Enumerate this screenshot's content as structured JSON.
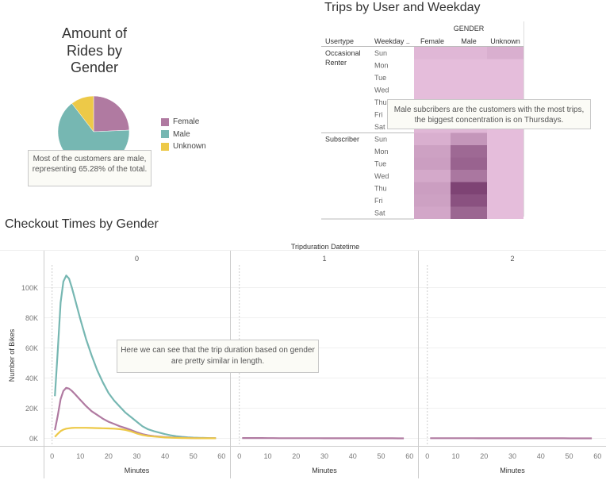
{
  "pie": {
    "title_line1": "Amount of",
    "title_line2": "Rides by",
    "title_line3": "Gender",
    "annotation": "Most of the customers are male, representing 65.28% of the total.",
    "legend": [
      {
        "label": "Female",
        "color": "#b07aa1"
      },
      {
        "label": "Male",
        "color": "#76b7b2"
      },
      {
        "label": "Unknown",
        "color": "#edc948"
      }
    ]
  },
  "heatmap": {
    "title": "Trips by User and Weekday",
    "col_group_header": "GENDER",
    "row_header_1": "Usertype",
    "row_header_2": "Weekday ..",
    "columns": [
      "Female",
      "Male",
      "Unknown"
    ],
    "groups": [
      {
        "label_line1": "Occasional",
        "label_line2": "Renter"
      },
      {
        "label_line1": "Subscriber",
        "label_line2": ""
      }
    ],
    "weekdays": [
      "Sun",
      "Mon",
      "Tue",
      "Wed",
      "Thu",
      "Fri",
      "Sat"
    ],
    "annotation": "Male subcribers are the customers with the most trips, the biggest concentration is on Thursdays."
  },
  "line": {
    "title": "Checkout Times by Gender",
    "panel_header": "Tripduration Datetime",
    "panels": [
      "0",
      "1",
      "2"
    ],
    "xlabel": "Minutes",
    "ylabel": "Number of Bikes",
    "annotation": "Here we can see that the trip duration based on gender are pretty similar in length."
  },
  "chart_data": [
    {
      "type": "pie",
      "title": "Amount of Rides by Gender",
      "categories": [
        "Female",
        "Male",
        "Unknown"
      ],
      "values": [
        24.3,
        65.28,
        10.42
      ],
      "colors": [
        "#b07aa1",
        "#76b7b2",
        "#edc948"
      ],
      "legend_position": "right"
    },
    {
      "type": "heatmap",
      "title": "Trips by User and Weekday",
      "columns": [
        "Female",
        "Male",
        "Unknown"
      ],
      "rows": [
        {
          "usertype": "Occasional Renter",
          "weekday": "Sun",
          "values": [
            0.12,
            0.12,
            0.18
          ]
        },
        {
          "usertype": "Occasional Renter",
          "weekday": "Mon",
          "values": [
            0.08,
            0.08,
            0.08
          ]
        },
        {
          "usertype": "Occasional Renter",
          "weekday": "Tue",
          "values": [
            0.08,
            0.08,
            0.08
          ]
        },
        {
          "usertype": "Occasional Renter",
          "weekday": "Wed",
          "values": [
            0.08,
            0.08,
            0.08
          ]
        },
        {
          "usertype": "Occasional Renter",
          "weekday": "Thu",
          "values": [
            0.08,
            0.08,
            0.08
          ]
        },
        {
          "usertype": "Occasional Renter",
          "weekday": "Fri",
          "values": [
            0.08,
            0.08,
            0.08
          ]
        },
        {
          "usertype": "Occasional Renter",
          "weekday": "Sat",
          "values": [
            0.12,
            0.12,
            0.08
          ]
        },
        {
          "usertype": "Subscriber",
          "weekday": "Sun",
          "values": [
            0.18,
            0.36,
            0.08
          ]
        },
        {
          "usertype": "Subscriber",
          "weekday": "Mon",
          "values": [
            0.28,
            0.68,
            0.08
          ]
        },
        {
          "usertype": "Subscriber",
          "weekday": "Tue",
          "values": [
            0.3,
            0.72,
            0.08
          ]
        },
        {
          "usertype": "Subscriber",
          "weekday": "Wed",
          "values": [
            0.22,
            0.58,
            0.08
          ]
        },
        {
          "usertype": "Subscriber",
          "weekday": "Thu",
          "values": [
            0.3,
            0.95,
            0.08
          ]
        },
        {
          "usertype": "Subscriber",
          "weekday": "Fri",
          "values": [
            0.28,
            0.85,
            0.08
          ]
        },
        {
          "usertype": "Subscriber",
          "weekday": "Sat",
          "values": [
            0.24,
            0.7,
            0.08
          ]
        }
      ]
    },
    {
      "type": "line",
      "title": "Checkout Times by Gender",
      "xlabel": "Minutes",
      "ylabel": "Number of Bikes",
      "panel_label": "Tripduration Datetime",
      "panels": [
        "0",
        "1",
        "2"
      ],
      "x_ticks": [
        0,
        10,
        20,
        30,
        40,
        50,
        60
      ],
      "y_ticks": [
        0,
        20000,
        40000,
        60000,
        80000,
        100000
      ],
      "y_tick_labels": [
        "0K",
        "20K",
        "40K",
        "60K",
        "80K",
        "100K"
      ],
      "xlim": [
        -3,
        63
      ],
      "ylim": [
        -5000,
        115000
      ],
      "x": [
        1,
        2,
        3,
        4,
        5,
        6,
        7,
        8,
        10,
        12,
        14,
        16,
        18,
        20,
        22,
        24,
        26,
        28,
        30,
        32,
        34,
        36,
        38,
        40,
        42,
        44,
        46,
        48,
        50,
        52,
        54,
        56,
        58
      ],
      "series": [
        {
          "name": "Male",
          "color": "#76b7b2",
          "panel": "0",
          "values": [
            28000,
            58000,
            90000,
            104000,
            108000,
            106000,
            100000,
            93000,
            79000,
            66000,
            55000,
            45000,
            37000,
            30000,
            25000,
            21000,
            17000,
            14000,
            11000,
            8000,
            6000,
            4800,
            3800,
            2800,
            2000,
            1400,
            1000,
            700,
            500,
            350,
            250,
            180,
            120
          ]
        },
        {
          "name": "Female",
          "color": "#b07aa1",
          "panel": "0",
          "values": [
            5500,
            15000,
            26000,
            31500,
            33500,
            33000,
            31500,
            29500,
            25500,
            21500,
            18000,
            15500,
            13000,
            11000,
            9500,
            8000,
            6800,
            5500,
            4000,
            2800,
            2000,
            1500,
            1100,
            800,
            600,
            450,
            350,
            250,
            180,
            130,
            100,
            80,
            60
          ]
        },
        {
          "name": "Unknown",
          "color": "#edc948",
          "panel": "0",
          "values": [
            1000,
            3000,
            4800,
            5800,
            6400,
            6700,
            6900,
            7000,
            7000,
            7000,
            6900,
            6800,
            6700,
            6600,
            6400,
            6100,
            5600,
            4600,
            3200,
            2200,
            1600,
            1200,
            900,
            600,
            400,
            300,
            200,
            150,
            100,
            80,
            60,
            40,
            30
          ]
        },
        {
          "name": "Female",
          "color": "#b07aa1",
          "panel": "1",
          "values_note": "near zero",
          "values": [
            200,
            200,
            200,
            200,
            200,
            200,
            200,
            200,
            150,
            150,
            120,
            120,
            100,
            100,
            100,
            80,
            80,
            80,
            60,
            60,
            60,
            50,
            50,
            50,
            40,
            40,
            40,
            30,
            30,
            30,
            30,
            20,
            20
          ]
        },
        {
          "name": "Female",
          "color": "#b07aa1",
          "panel": "2",
          "values": [
            100,
            100,
            100,
            100,
            100,
            100,
            100,
            100,
            80,
            80,
            80,
            80,
            60,
            60,
            60,
            60,
            50,
            50,
            50,
            50,
            40,
            40,
            40,
            40,
            30,
            30,
            30,
            30,
            20,
            20,
            20,
            20,
            20
          ]
        }
      ]
    }
  ]
}
